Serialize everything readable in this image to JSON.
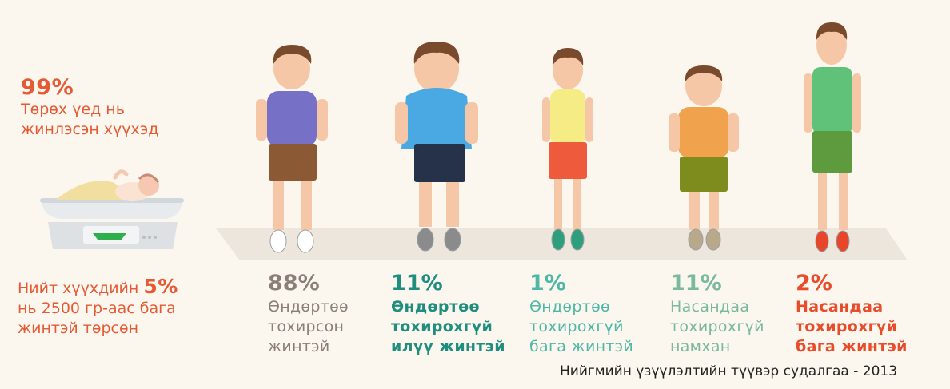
{
  "intro": {
    "percent": "99%",
    "caption_lines": [
      "Төрөх үед нь",
      "жинлэсэн хүүхэд"
    ],
    "color": "#e55a34"
  },
  "low_weight": {
    "line1_text": "Нийт хүүхдийн",
    "line1_percent": "5%",
    "line2": "нь 2500 гр-аас бага",
    "line3": "жинтэй төрсөн",
    "color": "#e55a34"
  },
  "categories": [
    {
      "percent": "88%",
      "lines": [
        "Өндөртөө",
        "тохирсон",
        "жинтэй"
      ],
      "color": "#8a7f78",
      "bold": false
    },
    {
      "percent": "11%",
      "lines": [
        "Өндөртөө",
        "тохирохгүй",
        "илүү жинтэй"
      ],
      "color": "#1f8e7e",
      "bold": true
    },
    {
      "percent": "1%",
      "lines": [
        "Өндөртөө",
        "тохирохгүй",
        "бага жинтэй"
      ],
      "color": "#4fb7a7",
      "bold": false
    },
    {
      "percent": "11%",
      "lines": [
        "Насандаа",
        "тохирохгүй",
        "намхан"
      ],
      "color": "#7ab8a0",
      "bold": false
    },
    {
      "percent": "2%",
      "lines": [
        "Насандаа",
        "тохирохгүй",
        "бага жинтэй"
      ],
      "color": "#e84c2b",
      "bold": true
    }
  ],
  "kids": [
    {
      "shirt": "#7670c6",
      "shorts": "#8b5a34",
      "shoe": "#ffffff"
    },
    {
      "shirt": "#4aa9e2",
      "shorts": "#26324a",
      "shoe": "#8b8b8b"
    },
    {
      "shirt": "#f5ec86",
      "shorts": "#ee5a3c",
      "shoe": "#2f9e7c"
    },
    {
      "shirt": "#f1a24c",
      "shorts": "#7e8c1e",
      "shoe": "#b8a98a"
    },
    {
      "shirt": "#5fc278",
      "shorts": "#5e9a3e",
      "shoe": "#e8462b"
    }
  ],
  "source": "Нийгмийн үзүүлэлтийн түүвэр судалгаа - 2013"
}
